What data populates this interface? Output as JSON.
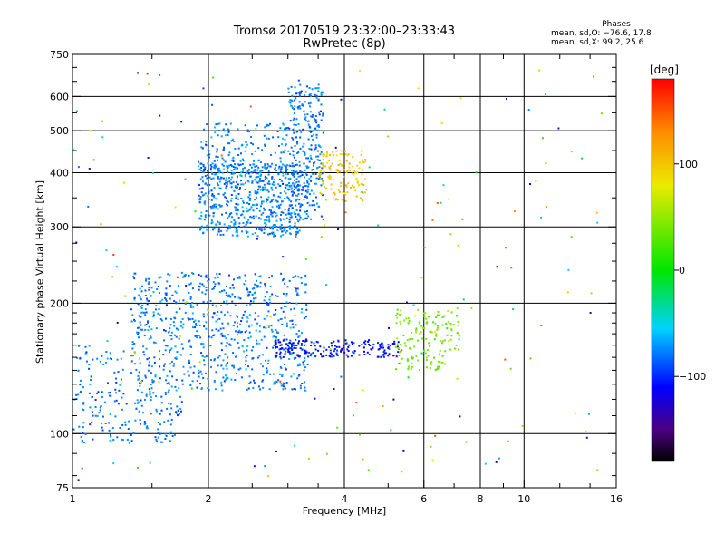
{
  "header": {
    "title_line1": "Tromsø 20170519 23:32:00–23:33:43",
    "title_line2": "RwPretec (8p)"
  },
  "phases": {
    "heading": "Phases",
    "line_o": "mean, sd,O:  −76.6, 17.8",
    "line_x": "mean, sd,X:  99.2, 25.6"
  },
  "colorbar": {
    "label": "[deg]",
    "range": [
      -180,
      180
    ],
    "ticks": [
      {
        "value": 100,
        "label": "100"
      },
      {
        "value": 0,
        "label": "0"
      },
      {
        "value": -100,
        "label": "−100"
      }
    ]
  },
  "chart_data": {
    "type": "scatter",
    "title": "Tromsø 20170519 23:32:00–23:33:43",
    "subtitle": "RwPretec (8p)",
    "xlabel": "Frequency [MHz]",
    "ylabel": "Stationary phase Virtual Height [km]",
    "x_scale": "log",
    "y_scale": "log",
    "xlim": [
      1,
      16
    ],
    "ylim": [
      75,
      750
    ],
    "x_ticks": [
      {
        "value": 1,
        "label": "1"
      },
      {
        "value": 2,
        "label": "2"
      },
      {
        "value": 4,
        "label": "4"
      },
      {
        "value": 6,
        "label": "6"
      },
      {
        "value": 8,
        "label": "8"
      },
      {
        "value": 10,
        "label": "10"
      },
      {
        "value": 16,
        "label": "16"
      }
    ],
    "y_ticks": [
      {
        "value": 75,
        "label": "75"
      },
      {
        "value": 100,
        "label": "100"
      },
      {
        "value": 200,
        "label": "200"
      },
      {
        "value": 300,
        "label": "300"
      },
      {
        "value": 400,
        "label": "400"
      },
      {
        "value": 500,
        "label": "500"
      },
      {
        "value": 600,
        "label": "600"
      },
      {
        "value": 750,
        "label": "750"
      }
    ],
    "x_grid": [
      2,
      4,
      6,
      8,
      10
    ],
    "y_grid": [
      100,
      200,
      300,
      400,
      500,
      600
    ],
    "color_scale": "phase in degrees, rainbow (black −180 → violet → blue → cyan → green → yellow → orange → red 180)",
    "clusters": [
      {
        "name": "low E-layer trace",
        "x_range": [
          1.0,
          1.75
        ],
        "y_range": [
          95,
          125
        ],
        "phase_mean": -78,
        "n": 160
      },
      {
        "name": "low E-layer upper",
        "x_range": [
          1.02,
          1.3
        ],
        "y_range": [
          120,
          160
        ],
        "phase_mean": -80,
        "n": 50
      },
      {
        "name": "E/Es blob",
        "x_range": [
          1.35,
          3.3
        ],
        "y_range": [
          125,
          235
        ],
        "phase_mean": -78,
        "n": 750
      },
      {
        "name": "Es band",
        "x_range": [
          2.8,
          5.3
        ],
        "y_range": [
          150,
          165
        ],
        "phase_mean": -108,
        "n": 200
      },
      {
        "name": "F cusp",
        "x_range": [
          1.9,
          3.2
        ],
        "y_range": [
          285,
          420
        ],
        "phase_mean": -76,
        "n": 650
      },
      {
        "name": "F upper sparse",
        "x_range": [
          1.9,
          3.0
        ],
        "y_range": [
          400,
          520
        ],
        "phase_mean": -76,
        "n": 150
      },
      {
        "name": "F steep rise",
        "x_range": [
          3.0,
          3.6
        ],
        "y_range": [
          310,
          640
        ],
        "phase_mean": -80,
        "n": 300
      },
      {
        "name": "X trace",
        "x_range": [
          3.5,
          4.5
        ],
        "y_range": [
          340,
          450
        ],
        "phase_mean": 99,
        "n": 130
      },
      {
        "name": "high-frequency blob",
        "x_range": [
          5.2,
          7.2
        ],
        "y_range": [
          140,
          195
        ],
        "phase_mean": 40,
        "n": 150
      },
      {
        "name": "noise",
        "x_range": [
          1.0,
          15.0
        ],
        "y_range": [
          78,
          700
        ],
        "phase_mean": 0,
        "n": 180
      }
    ]
  }
}
